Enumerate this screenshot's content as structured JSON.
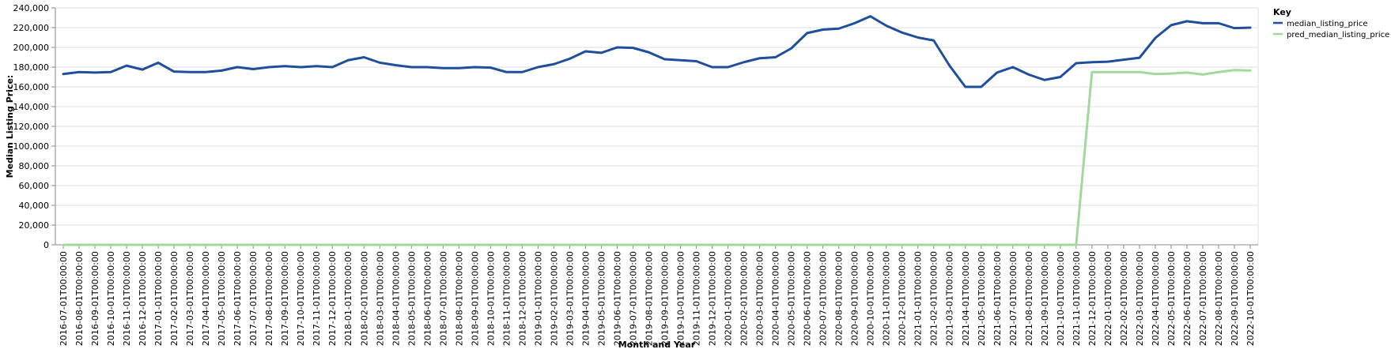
{
  "chart_data": {
    "type": "line",
    "xlabel": "Month and Year",
    "ylabel": "Median Listing Price:",
    "ylim": [
      0,
      240000
    ],
    "yticks": [
      0,
      20000,
      40000,
      60000,
      80000,
      100000,
      120000,
      140000,
      160000,
      180000,
      200000,
      220000,
      240000
    ],
    "ytick_labels": [
      "0",
      "20,000",
      "40,000",
      "60,000",
      "80,000",
      "100,000",
      "120,000",
      "140,000",
      "160,000",
      "180,000",
      "200,000",
      "220,000",
      "240,000"
    ],
    "grid": true,
    "legend": {
      "title": "Key",
      "position": "top-right"
    },
    "x": [
      "2016-07-01T00:00:00",
      "2016-08-01T00:00:00",
      "2016-09-01T00:00:00",
      "2016-10-01T00:00:00",
      "2016-11-01T00:00:00",
      "2016-12-01T00:00:00",
      "2017-01-01T00:00:00",
      "2017-02-01T00:00:00",
      "2017-03-01T00:00:00",
      "2017-04-01T00:00:00",
      "2017-05-01T00:00:00",
      "2017-06-01T00:00:00",
      "2017-07-01T00:00:00",
      "2017-08-01T00:00:00",
      "2017-09-01T00:00:00",
      "2017-10-01T00:00:00",
      "2017-11-01T00:00:00",
      "2017-12-01T00:00:00",
      "2018-01-01T00:00:00",
      "2018-02-01T00:00:00",
      "2018-03-01T00:00:00",
      "2018-04-01T00:00:00",
      "2018-05-01T00:00:00",
      "2018-06-01T00:00:00",
      "2018-07-01T00:00:00",
      "2018-08-01T00:00:00",
      "2018-09-01T00:00:00",
      "2018-10-01T00:00:00",
      "2018-11-01T00:00:00",
      "2018-12-01T00:00:00",
      "2019-01-01T00:00:00",
      "2019-02-01T00:00:00",
      "2019-03-01T00:00:00",
      "2019-04-01T00:00:00",
      "2019-05-01T00:00:00",
      "2019-06-01T00:00:00",
      "2019-07-01T00:00:00",
      "2019-08-01T00:00:00",
      "2019-09-01T00:00:00",
      "2019-10-01T00:00:00",
      "2019-11-01T00:00:00",
      "2019-12-01T00:00:00",
      "2020-01-01T00:00:00",
      "2020-02-01T00:00:00",
      "2020-03-01T00:00:00",
      "2020-04-01T00:00:00",
      "2020-05-01T00:00:00",
      "2020-06-01T00:00:00",
      "2020-07-01T00:00:00",
      "2020-08-01T00:00:00",
      "2020-09-01T00:00:00",
      "2020-10-01T00:00:00",
      "2020-11-01T00:00:00",
      "2020-12-01T00:00:00",
      "2021-01-01T00:00:00",
      "2021-02-01T00:00:00",
      "2021-03-01T00:00:00",
      "2021-04-01T00:00:00",
      "2021-05-01T00:00:00",
      "2021-06-01T00:00:00",
      "2021-07-01T00:00:00",
      "2021-08-01T00:00:00",
      "2021-09-01T00:00:00",
      "2021-10-01T00:00:00",
      "2021-11-01T00:00:00",
      "2021-12-01T00:00:00",
      "2022-01-01T00:00:00",
      "2022-02-01T00:00:00",
      "2022-03-01T00:00:00",
      "2022-04-01T00:00:00",
      "2022-05-01T00:00:00",
      "2022-06-01T00:00:00",
      "2022-07-01T00:00:00",
      "2022-08-01T00:00:00",
      "2022-09-01T00:00:00",
      "2022-10-01T00:00:00"
    ],
    "series": [
      {
        "name": "median_listing_price",
        "color": "#1f4e9c",
        "values": [
          173000,
          175000,
          174500,
          175000,
          181500,
          177500,
          184500,
          175500,
          175000,
          175000,
          176500,
          180000,
          178000,
          180000,
          181000,
          180000,
          181000,
          180000,
          187000,
          190000,
          184500,
          182000,
          180000,
          180000,
          179000,
          179000,
          180000,
          179500,
          175000,
          175000,
          180000,
          183000,
          188500,
          196000,
          194500,
          200000,
          199500,
          195000,
          188000,
          187000,
          186000,
          180000,
          180000,
          185000,
          189000,
          190000,
          199000,
          214500,
          218000,
          219000,
          224500,
          231500,
          222000,
          215000,
          210000,
          207000,
          181500,
          160000,
          160000,
          174500,
          180000,
          172500,
          167000,
          170000,
          184000,
          185000,
          185500,
          187500,
          189500,
          209500,
          222500,
          226500,
          224500,
          224500,
          219500,
          220000
        ]
      },
      {
        "name": "pred_median_listing_price",
        "color": "#a1d99b",
        "values": [
          0,
          0,
          0,
          0,
          0,
          0,
          0,
          0,
          0,
          0,
          0,
          0,
          0,
          0,
          0,
          0,
          0,
          0,
          0,
          0,
          0,
          0,
          0,
          0,
          0,
          0,
          0,
          0,
          0,
          0,
          0,
          0,
          0,
          0,
          0,
          0,
          0,
          0,
          0,
          0,
          0,
          0,
          0,
          0,
          0,
          0,
          0,
          0,
          0,
          0,
          0,
          0,
          0,
          0,
          0,
          0,
          0,
          0,
          0,
          0,
          0,
          0,
          0,
          0,
          0,
          175000,
          175000,
          175000,
          175000,
          173000,
          173500,
          174500,
          172500,
          175000,
          177000,
          176500
        ]
      }
    ]
  }
}
